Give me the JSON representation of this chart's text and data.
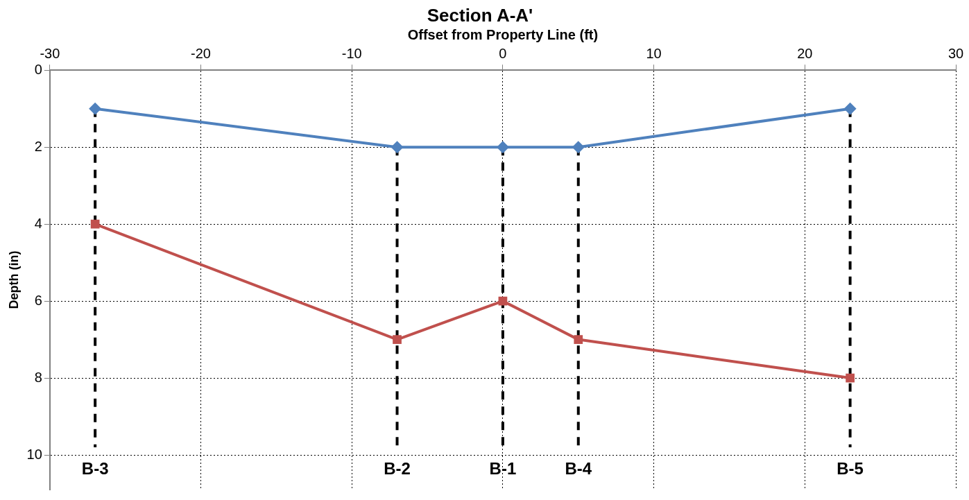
{
  "chart_data": {
    "type": "line",
    "title": "Section A-A'",
    "xlabel": "Offset from Property Line (ft)",
    "ylabel": "Depth (in)",
    "xlim": [
      -30,
      30
    ],
    "xticks": [
      -30,
      -20,
      -10,
      0,
      10,
      20,
      30
    ],
    "ylim": [
      10.9,
      0
    ],
    "yticks": [
      0,
      2,
      4,
      6,
      8,
      10
    ],
    "grid": true,
    "legend": false,
    "series": [
      {
        "color": "#4f81bd",
        "x": [
          -27,
          -7,
          0,
          5,
          23
        ],
        "values": [
          1,
          2,
          2,
          2,
          1
        ],
        "marker": "diamond",
        "line_style": "solid"
      },
      {
        "color": "#c0504d",
        "x": [
          -27,
          -7,
          0,
          5,
          23
        ],
        "values": [
          4,
          7,
          6,
          7,
          8
        ],
        "marker": "square",
        "line_style": "solid"
      },
      {
        "color": "#000000",
        "x": [
          -27,
          -27
        ],
        "values": [
          1,
          9.8
        ],
        "marker": "none",
        "line_style": "dashed"
      },
      {
        "color": "#000000",
        "x": [
          -7,
          -7
        ],
        "values": [
          2,
          9.8
        ],
        "marker": "none",
        "line_style": "dashed"
      },
      {
        "color": "#000000",
        "x": [
          0,
          0
        ],
        "values": [
          2,
          9.8
        ],
        "marker": "none",
        "line_style": "dashed"
      },
      {
        "color": "#000000",
        "x": [
          5,
          5
        ],
        "values": [
          2,
          9.8
        ],
        "marker": "none",
        "line_style": "dashed"
      },
      {
        "color": "#000000",
        "x": [
          23,
          23
        ],
        "values": [
          1,
          9.8
        ],
        "marker": "none",
        "line_style": "dashed"
      }
    ],
    "annotations": [
      {
        "text": "B-3",
        "x": -27,
        "y": 9.8
      },
      {
        "text": "B-2",
        "x": -7,
        "y": 9.8
      },
      {
        "text": "B-1",
        "x": 0,
        "y": 9.8
      },
      {
        "text": "B-4",
        "x": 5,
        "y": 9.8
      },
      {
        "text": "B-5",
        "x": 23,
        "y": 9.8
      }
    ]
  }
}
